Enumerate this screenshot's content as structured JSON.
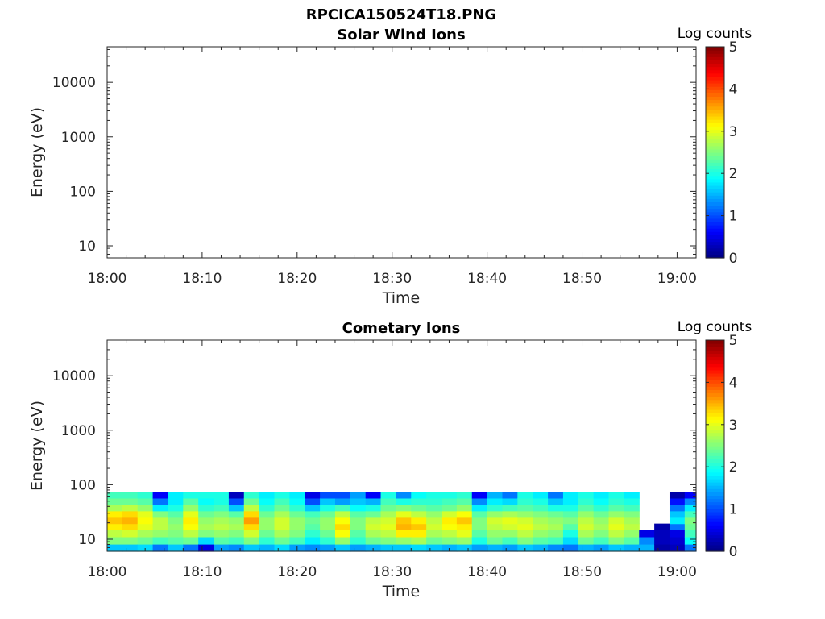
{
  "figure_title": "RPCICA150524T18.PNG",
  "chart_data": [
    {
      "type": "heatmap",
      "title": "Solar Wind Ions",
      "xlabel": "Time",
      "ylabel": "Energy (eV)",
      "xticks": [
        "18:00",
        "18:10",
        "18:20",
        "18:30",
        "18:40",
        "18:50",
        "19:00"
      ],
      "xlim": [
        "18:00",
        "19:02"
      ],
      "yticks": [
        "10",
        "100",
        "1000",
        "10000"
      ],
      "ylim": [
        6,
        45000
      ],
      "yscale": "log",
      "colorbar": {
        "label": "Log counts",
        "range": [
          0,
          5
        ],
        "ticks": [
          "0",
          "1",
          "2",
          "3",
          "4",
          "5"
        ],
        "colormap": "jet"
      },
      "data": "no counts recorded (empty panel)"
    },
    {
      "type": "heatmap",
      "title": "Cometary Ions",
      "xlabel": "Time",
      "ylabel": "Energy (eV)",
      "xticks": [
        "18:00",
        "18:10",
        "18:20",
        "18:30",
        "18:40",
        "18:50",
        "19:00"
      ],
      "xlim": [
        "18:00",
        "19:02"
      ],
      "yticks": [
        "10",
        "100",
        "1000",
        "10000"
      ],
      "ylim": [
        6,
        45000
      ],
      "yscale": "log",
      "colorbar": {
        "label": "Log counts",
        "range": [
          0,
          5
        ],
        "ticks": [
          "0",
          "1",
          "2",
          "3",
          "4",
          "5"
        ],
        "colormap": "jet"
      },
      "energy_bins_eV": [
        7,
        9.5,
        13,
        17,
        22,
        29,
        38,
        50,
        65
      ],
      "time_start_min": 0,
      "time_step_min": 1.6,
      "log_counts": [
        [
          1.6,
          2.5,
          2.8,
          3.2,
          3.4,
          3.2,
          2.7,
          2.4,
          2.2
        ],
        [
          1.6,
          2.5,
          2.9,
          3.3,
          3.5,
          3.3,
          2.8,
          2.4,
          2.2
        ],
        [
          1.7,
          2.4,
          2.7,
          3.0,
          3.1,
          3.0,
          2.6,
          2.3,
          2.1
        ],
        [
          1.2,
          2.2,
          2.6,
          2.8,
          2.8,
          2.5,
          1.8,
          1.2,
          0.6
        ],
        [
          1.6,
          2.3,
          2.5,
          2.6,
          2.5,
          2.3,
          2.0,
          1.8,
          1.8
        ],
        [
          1.2,
          2.4,
          2.8,
          3.1,
          3.2,
          3.0,
          2.6,
          2.3,
          2.0
        ],
        [
          0.5,
          1.7,
          2.5,
          2.7,
          2.6,
          2.4,
          2.1,
          1.9,
          2.0
        ],
        [
          1.4,
          2.3,
          2.6,
          2.8,
          2.7,
          2.5,
          2.2,
          2.0,
          2.0
        ],
        [
          1.3,
          2.2,
          2.5,
          2.7,
          2.6,
          2.3,
          1.6,
          1.0,
          0.3
        ],
        [
          1.6,
          2.5,
          2.9,
          3.3,
          3.6,
          3.3,
          2.8,
          2.4,
          2.1
        ],
        [
          1.5,
          2.1,
          2.4,
          2.6,
          2.6,
          2.4,
          2.1,
          1.9,
          1.8
        ],
        [
          1.7,
          2.4,
          2.7,
          2.9,
          2.9,
          2.7,
          2.4,
          2.2,
          2.0
        ],
        [
          1.4,
          2.2,
          2.5,
          2.6,
          2.6,
          2.4,
          2.1,
          1.9,
          1.8
        ],
        [
          1.3,
          1.8,
          2.1,
          2.3,
          2.4,
          2.2,
          1.6,
          1.0,
          0.5
        ],
        [
          1.4,
          2.1,
          2.4,
          2.6,
          2.6,
          2.4,
          2.0,
          1.6,
          1.0
        ],
        [
          1.6,
          2.6,
          3.1,
          3.3,
          3.1,
          2.8,
          2.2,
          1.4,
          1.0
        ],
        [
          1.4,
          2.1,
          2.3,
          2.5,
          2.5,
          2.3,
          1.9,
          1.6,
          1.4
        ],
        [
          1.5,
          2.4,
          2.7,
          2.9,
          2.8,
          2.4,
          2.0,
          1.5,
          0.6
        ],
        [
          1.6,
          2.5,
          2.8,
          3.0,
          2.9,
          2.7,
          2.4,
          2.2,
          2.0
        ],
        [
          1.6,
          2.6,
          3.2,
          3.5,
          3.4,
          3.0,
          2.5,
          2.0,
          1.3
        ],
        [
          1.7,
          2.7,
          3.2,
          3.4,
          3.2,
          2.8,
          2.4,
          2.1,
          1.9
        ],
        [
          1.6,
          2.4,
          2.7,
          2.9,
          2.8,
          2.6,
          2.3,
          2.1,
          2.0
        ],
        [
          1.5,
          2.5,
          2.8,
          3.1,
          3.2,
          2.9,
          2.4,
          2.2,
          2.0
        ],
        [
          1.6,
          2.6,
          3.0,
          3.2,
          3.4,
          3.1,
          2.6,
          2.3,
          2.1
        ],
        [
          1.4,
          2.0,
          2.3,
          2.5,
          2.5,
          2.3,
          1.8,
          1.3,
          0.6
        ],
        [
          1.5,
          2.4,
          2.6,
          2.8,
          2.9,
          2.6,
          2.1,
          1.8,
          1.5
        ],
        [
          1.4,
          2.2,
          2.6,
          2.9,
          3.0,
          2.7,
          2.2,
          1.7,
          1.2
        ],
        [
          1.6,
          2.5,
          2.8,
          3.0,
          2.9,
          2.6,
          2.3,
          2.1,
          2.0
        ],
        [
          1.5,
          2.3,
          2.6,
          2.8,
          2.7,
          2.5,
          2.2,
          2.0,
          1.8
        ],
        [
          1.3,
          2.2,
          2.5,
          2.7,
          2.6,
          2.4,
          2.0,
          1.6,
          1.2
        ],
        [
          1.2,
          1.7,
          2.0,
          2.3,
          2.5,
          2.3,
          2.0,
          1.8,
          1.8
        ],
        [
          1.5,
          2.4,
          2.7,
          2.9,
          2.8,
          2.6,
          2.3,
          2.1,
          2.0
        ],
        [
          1.4,
          2.2,
          2.5,
          2.7,
          2.6,
          2.4,
          2.1,
          1.9,
          1.8
        ],
        [
          1.6,
          2.5,
          2.8,
          3.0,
          2.9,
          2.6,
          2.3,
          2.1,
          2.0
        ],
        [
          1.5,
          2.3,
          2.6,
          2.8,
          2.7,
          2.5,
          2.2,
          2.0,
          1.8
        ],
        [
          1.5,
          1.3,
          0.5,
          null,
          null,
          null,
          null,
          null,
          null
        ],
        [
          0.2,
          0.3,
          0.3,
          0.2,
          null,
          null,
          null,
          null,
          null
        ],
        [
          0.3,
          0.4,
          0.5,
          1.2,
          1.8,
          1.6,
          1.2,
          0.7,
          0.2
        ],
        [
          1.2,
          1.9,
          2.2,
          2.4,
          2.5,
          2.2,
          1.8,
          1.3,
          0.6
        ],
        [
          0.4,
          1.8,
          2.4,
          2.6,
          2.6,
          2.4,
          2.1,
          1.9,
          1.9
        ],
        [
          1.5,
          2.4,
          2.8,
          3.1,
          3.3,
          3.0,
          2.6,
          2.3,
          2.1
        ],
        [
          1.2,
          1.8,
          2.1,
          2.4,
          2.5,
          2.3,
          1.6,
          1.0,
          0.8
        ],
        [
          1.3,
          2.0,
          2.3,
          2.5,
          2.5,
          2.3,
          1.5,
          0.8,
          0.4
        ],
        [
          1.6,
          2.4,
          2.6,
          2.8,
          2.7,
          2.5,
          2.2,
          2.0,
          1.9
        ],
        [
          1.4,
          2.2,
          2.5,
          2.7,
          2.6,
          2.4,
          2.1,
          1.9,
          1.8
        ],
        [
          1.6,
          2.4,
          2.7,
          2.9,
          2.8,
          2.6,
          2.3,
          2.1,
          2.0
        ],
        [
          1.5,
          2.3,
          2.6,
          2.8,
          2.7,
          2.5,
          2.2,
          2.0,
          1.9
        ]
      ]
    }
  ]
}
